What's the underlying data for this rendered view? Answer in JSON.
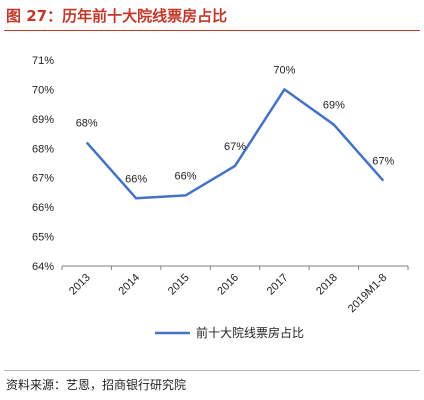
{
  "figure_title": "图 27：历年前十大院线票房占比",
  "source_note": "资料来源：艺恩，招商银行研究院",
  "colors": {
    "accent": "#c0392b",
    "series": "#4472c4",
    "axis": "#7f7f7f"
  },
  "chart_data": {
    "type": "line",
    "title": "",
    "xlabel": "",
    "ylabel": "",
    "categories": [
      "2013",
      "2014",
      "2015",
      "2016",
      "2017",
      "2018",
      "2019M1-8"
    ],
    "series": [
      {
        "name": "前十大院线票房占比",
        "values": [
          68.2,
          66.3,
          66.4,
          67.4,
          70.0,
          68.8,
          66.9
        ]
      }
    ],
    "data_labels": [
      "68%",
      "66%",
      "66%",
      "67%",
      "70%",
      "69%",
      "67%"
    ],
    "ylim": [
      64,
      71
    ],
    "yticks": [
      64,
      65,
      66,
      67,
      68,
      69,
      70,
      71
    ],
    "ytick_labels": [
      "64%",
      "65%",
      "66%",
      "67%",
      "68%",
      "69%",
      "70%",
      "71%"
    ],
    "grid": false,
    "legend_position": "bottom"
  }
}
